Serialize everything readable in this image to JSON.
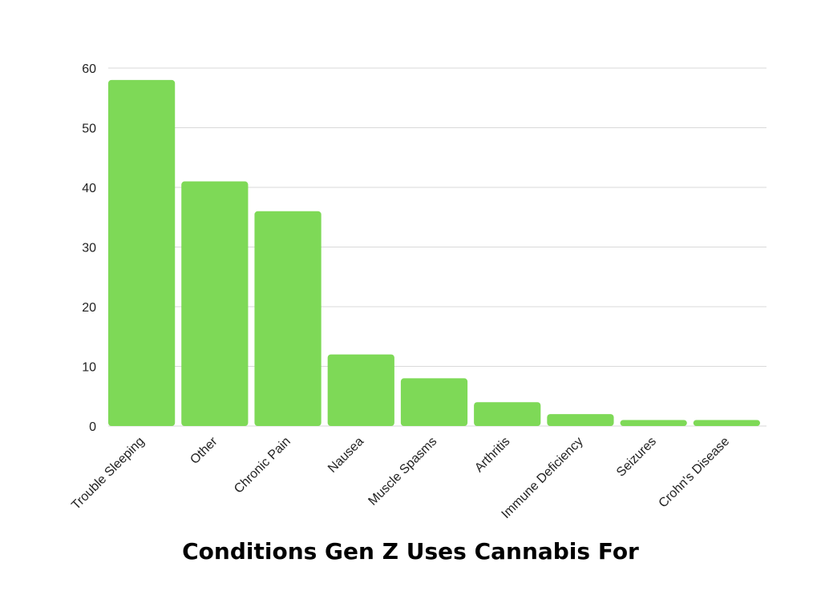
{
  "chart_data": {
    "type": "bar",
    "title": "Conditions Gen Z Uses Cannabis For",
    "categories": [
      "Trouble Sleeping",
      "Other",
      "Chronic Pain",
      "Nausea",
      "Muscle Spasms",
      "Arthritis",
      "Immune Deficiency",
      "Seizures",
      "Crohn's Disease"
    ],
    "values": [
      58,
      41,
      36,
      12,
      8,
      4,
      2,
      1,
      1
    ],
    "xlabel": "",
    "ylabel": "",
    "ylim": [
      0,
      60
    ],
    "yticks": [
      0,
      10,
      20,
      30,
      40,
      50,
      60
    ],
    "grid": true,
    "legend": "none",
    "colors": {
      "bar": "#7ed957",
      "grid": "#d9d9d9",
      "text": "#222222"
    }
  }
}
